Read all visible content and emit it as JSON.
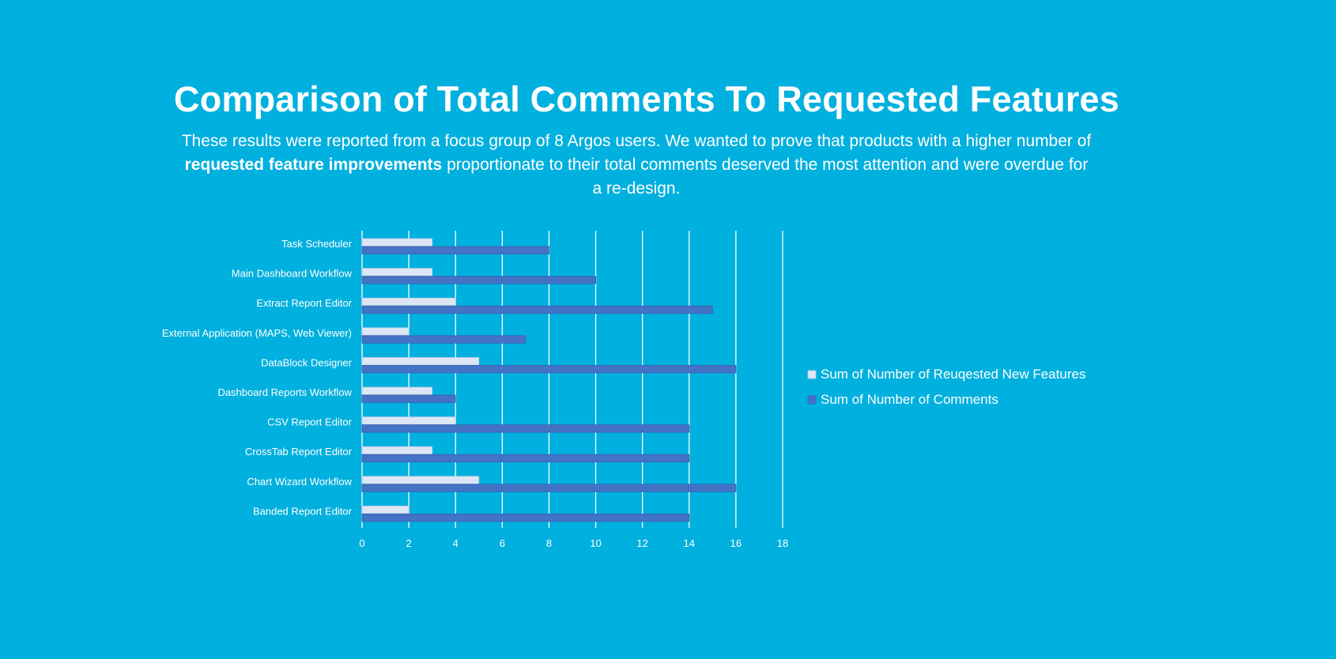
{
  "page": {
    "title": "Comparison of Total Comments To Requested Features",
    "subtitle_part1": "These results were reported from a focus group of 8 Argos users.  We wanted to prove that products with a higher number of ",
    "subtitle_bold": "requested feature improvements",
    "subtitle_part2": " proportionate to their total comments deserved the most attention and were overdue for a re-design."
  },
  "chart_data": {
    "type": "bar",
    "orientation": "horizontal",
    "title": "Comparison of Total Comments To Requested Features",
    "categories": [
      "Task Scheduler",
      "Main Dashboard Workflow",
      "Extract Report Editor",
      "External Application (MAPS, Web Viewer)",
      "DataBlock Designer",
      "Dashboard Reports Workflow",
      "CSV Report Editor",
      "CrossTab Report Editor",
      "Chart Wizard Workflow",
      "Banded Report Editor"
    ],
    "series": [
      {
        "name": "Sum of Number of Reuqested New Features",
        "color": "#DCE6F4",
        "values": [
          3,
          3,
          4,
          2,
          5,
          3,
          4,
          3,
          5,
          2
        ]
      },
      {
        "name": "Sum of Number of Comments",
        "color": "#4472C4",
        "values": [
          8,
          10,
          15,
          7,
          16,
          4,
          14,
          14,
          16,
          14
        ]
      }
    ],
    "xlim": [
      0,
      18
    ],
    "xticks": [
      0,
      2,
      4,
      6,
      8,
      10,
      12,
      14,
      16,
      18
    ],
    "xlabel": "",
    "ylabel": "",
    "grid": true,
    "legend_position": "right"
  }
}
